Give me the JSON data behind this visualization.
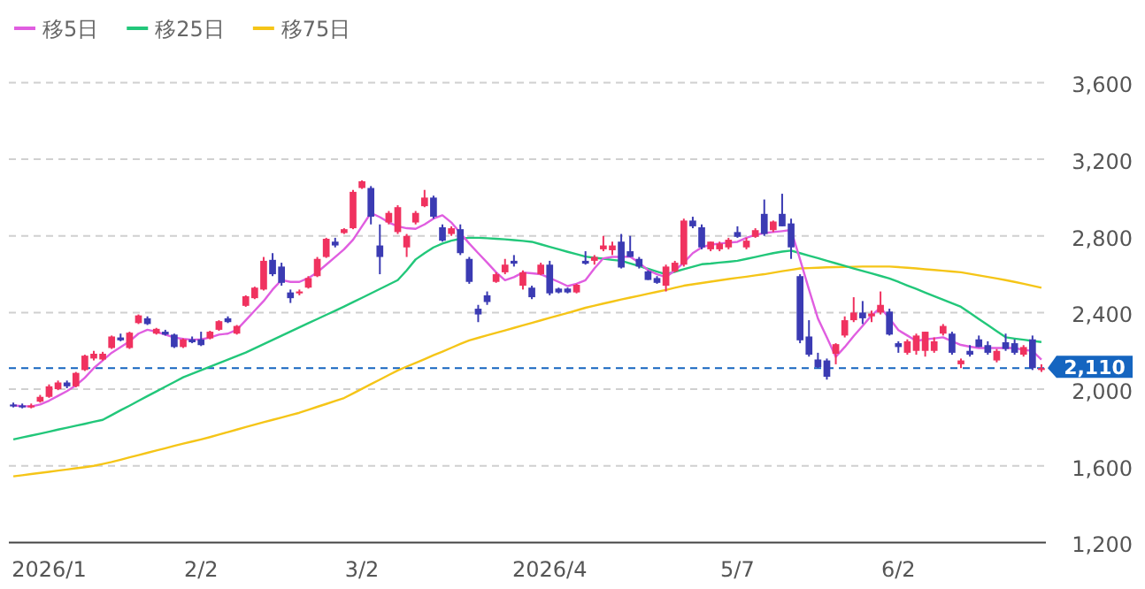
{
  "chart_data": {
    "type": "candlestick",
    "categories": [
      null,
      null,
      null,
      null,
      "2026/1",
      null,
      null,
      null,
      null,
      null,
      null,
      null,
      null,
      null,
      null,
      null,
      null,
      null,
      null,
      null,
      null,
      "2/2",
      null,
      null,
      null,
      null,
      null,
      null,
      null,
      null,
      null,
      null,
      null,
      null,
      null,
      null,
      null,
      null,
      null,
      "3/2",
      null,
      null,
      null,
      null,
      null,
      null,
      null,
      null,
      null,
      null,
      null,
      null,
      null,
      null,
      null,
      null,
      null,
      null,
      null,
      null,
      "2026/4",
      null,
      null,
      null,
      null,
      null,
      null,
      null,
      null,
      null,
      null,
      null,
      null,
      null,
      null,
      null,
      null,
      null,
      null,
      null,
      null,
      "5/7",
      null,
      null,
      null,
      null,
      null,
      null,
      null,
      null,
      null,
      null,
      null,
      null,
      null,
      null,
      null,
      null,
      null,
      "6/2",
      null,
      null,
      null,
      null,
      null,
      null,
      null,
      null,
      null,
      null,
      null,
      null,
      null,
      null,
      null,
      null
    ],
    "ohlc": [
      [
        1920,
        1930,
        1905,
        1910
      ],
      [
        1915,
        1925,
        1900,
        1905
      ],
      [
        1905,
        1925,
        1900,
        1915
      ],
      [
        1935,
        1970,
        1930,
        1960
      ],
      [
        1960,
        2025,
        1955,
        2015
      ],
      [
        2000,
        2045,
        1995,
        2035
      ],
      [
        2035,
        2045,
        2005,
        2015
      ],
      [
        2015,
        2090,
        2010,
        2085
      ],
      [
        2100,
        2180,
        2095,
        2175
      ],
      [
        2160,
        2200,
        2150,
        2185
      ],
      [
        2155,
        2195,
        2150,
        2185
      ],
      [
        2215,
        2280,
        2210,
        2275
      ],
      [
        2270,
        2290,
        2250,
        2255
      ],
      [
        2215,
        2300,
        2210,
        2295
      ],
      [
        2345,
        2390,
        2340,
        2385
      ],
      [
        2370,
        2380,
        2335,
        2340
      ],
      [
        2290,
        2320,
        2285,
        2315
      ],
      [
        2300,
        2310,
        2280,
        2285
      ],
      [
        2285,
        2290,
        2215,
        2220
      ],
      [
        2220,
        2265,
        2215,
        2260
      ],
      [
        2260,
        2275,
        2240,
        2245
      ],
      [
        2260,
        2300,
        2225,
        2230
      ],
      [
        2265,
        2305,
        2260,
        2300
      ],
      [
        2310,
        2360,
        2305,
        2355
      ],
      [
        2370,
        2380,
        2345,
        2350
      ],
      [
        2290,
        2335,
        2285,
        2330
      ],
      [
        2435,
        2490,
        2430,
        2485
      ],
      [
        2475,
        2535,
        2470,
        2530
      ],
      [
        2520,
        2690,
        2515,
        2670
      ],
      [
        2675,
        2710,
        2590,
        2600
      ],
      [
        2640,
        2660,
        2540,
        2555
      ],
      [
        2505,
        2520,
        2450,
        2475
      ],
      [
        2500,
        2520,
        2490,
        2510
      ],
      [
        2530,
        2590,
        2525,
        2580
      ],
      [
        2590,
        2690,
        2585,
        2680
      ],
      [
        2690,
        2790,
        2685,
        2785
      ],
      [
        2770,
        2790,
        2740,
        2750
      ],
      [
        2815,
        2840,
        2810,
        2835
      ],
      [
        2840,
        3040,
        2835,
        3030
      ],
      [
        3050,
        3090,
        3045,
        3085
      ],
      [
        3050,
        3060,
        2860,
        2900
      ],
      [
        2750,
        2860,
        2600,
        2690
      ],
      [
        2870,
        2930,
        2860,
        2920
      ],
      [
        2820,
        2960,
        2810,
        2950
      ],
      [
        2740,
        2810,
        2690,
        2800
      ],
      [
        2870,
        2930,
        2860,
        2920
      ],
      [
        2955,
        3040,
        2950,
        3000
      ],
      [
        3000,
        3010,
        2890,
        2900
      ],
      [
        2845,
        2860,
        2770,
        2775
      ],
      [
        2810,
        2850,
        2800,
        2840
      ],
      [
        2835,
        2860,
        2700,
        2710
      ],
      [
        2680,
        2690,
        2550,
        2560
      ],
      [
        2420,
        2440,
        2350,
        2390
      ],
      [
        2490,
        2510,
        2440,
        2455
      ],
      [
        2560,
        2610,
        2555,
        2600
      ],
      [
        2610,
        2680,
        2600,
        2650
      ],
      [
        2670,
        2700,
        2640,
        2655
      ],
      [
        2540,
        2620,
        2520,
        2610
      ],
      [
        2530,
        2540,
        2470,
        2480
      ],
      [
        2600,
        2660,
        2595,
        2650
      ],
      [
        2650,
        2670,
        2490,
        2500
      ],
      [
        2525,
        2530,
        2500,
        2505
      ],
      [
        2525,
        2530,
        2500,
        2505
      ],
      [
        2505,
        2550,
        2500,
        2545
      ],
      [
        2670,
        2720,
        2650,
        2655
      ],
      [
        2670,
        2700,
        2650,
        2690
      ],
      [
        2730,
        2800,
        2720,
        2750
      ],
      [
        2725,
        2770,
        2700,
        2750
      ],
      [
        2770,
        2810,
        2630,
        2635
      ],
      [
        2720,
        2800,
        2690,
        2690
      ],
      [
        2680,
        2690,
        2630,
        2640
      ],
      [
        2615,
        2620,
        2570,
        2570
      ],
      [
        2580,
        2590,
        2550,
        2555
      ],
      [
        2540,
        2650,
        2510,
        2640
      ],
      [
        2615,
        2670,
        2610,
        2660
      ],
      [
        2650,
        2890,
        2640,
        2880
      ],
      [
        2880,
        2900,
        2840,
        2850
      ],
      [
        2845,
        2860,
        2730,
        2740
      ],
      [
        2730,
        2770,
        2720,
        2770
      ],
      [
        2730,
        2770,
        2720,
        2760
      ],
      [
        2740,
        2790,
        2730,
        2780
      ],
      [
        2820,
        2850,
        2790,
        2795
      ],
      [
        2740,
        2790,
        2730,
        2775
      ],
      [
        2795,
        2840,
        2790,
        2830
      ],
      [
        2915,
        2990,
        2800,
        2810
      ],
      [
        2830,
        2880,
        2820,
        2875
      ],
      [
        2915,
        3020,
        2850,
        2850
      ],
      [
        2865,
        2890,
        2680,
        2740
      ],
      [
        2590,
        2600,
        2240,
        2255
      ],
      [
        2275,
        2360,
        2170,
        2180
      ],
      [
        2155,
        2190,
        2110,
        2115
      ],
      [
        2150,
        2160,
        2050,
        2065
      ],
      [
        2185,
        2240,
        2130,
        2235
      ],
      [
        2280,
        2380,
        2270,
        2360
      ],
      [
        2360,
        2480,
        2350,
        2400
      ],
      [
        2400,
        2460,
        2340,
        2370
      ],
      [
        2380,
        2410,
        2350,
        2395
      ],
      [
        2400,
        2510,
        2390,
        2440
      ],
      [
        2405,
        2420,
        2280,
        2285
      ],
      [
        2240,
        2250,
        2190,
        2220
      ],
      [
        2190,
        2260,
        2180,
        2250
      ],
      [
        2200,
        2290,
        2180,
        2280
      ],
      [
        2200,
        2300,
        2170,
        2300
      ],
      [
        2200,
        2270,
        2190,
        2250
      ],
      [
        2290,
        2340,
        2280,
        2330
      ],
      [
        2290,
        2300,
        2180,
        2190
      ],
      [
        2130,
        2160,
        2110,
        2150
      ],
      [
        2200,
        2230,
        2170,
        2180
      ],
      [
        2260,
        2280,
        2220,
        2220
      ],
      [
        2230,
        2250,
        2180,
        2190
      ],
      [
        2150,
        2210,
        2140,
        2200
      ],
      [
        2245,
        2290,
        2200,
        2210
      ],
      [
        2240,
        2260,
        2180,
        2190
      ],
      [
        2180,
        2230,
        2170,
        2220
      ],
      [
        2260,
        2280,
        2100,
        2110
      ],
      [
        2100,
        2130,
        2090,
        2110
      ]
    ],
    "series": [
      {
        "name": "移5日",
        "type": "line",
        "color": "#e05ee0",
        "values": [
          1915,
          1912,
          1910,
          1920,
          1940,
          1965,
          1990,
          2020,
          2060,
          2110,
          2150,
          2190,
          2220,
          2250,
          2290,
          2310,
          2300,
          2285,
          2270,
          2262,
          2258,
          2260,
          2270,
          2285,
          2290,
          2310,
          2360,
          2410,
          2460,
          2520,
          2570,
          2560,
          2560,
          2580,
          2610,
          2650,
          2690,
          2730,
          2780,
          2850,
          2920,
          2898,
          2870,
          2850,
          2840,
          2837,
          2860,
          2890,
          2908,
          2870,
          2815,
          2760,
          2710,
          2661,
          2610,
          2569,
          2585,
          2609,
          2605,
          2600,
          2580,
          2560,
          2538,
          2550,
          2569,
          2630,
          2683,
          2690,
          2690,
          2692,
          2660,
          2621,
          2600,
          2585,
          2620,
          2661,
          2710,
          2740,
          2754,
          2760,
          2765,
          2769,
          2790,
          2805,
          2815,
          2820,
          2825,
          2831,
          2677,
          2520,
          2369,
          2270,
          2169,
          2220,
          2277,
          2330,
          2385,
          2425,
          2370,
          2308,
          2280,
          2252,
          2260,
          2265,
          2271,
          2250,
          2231,
          2222,
          2215,
          2215,
          2215,
          2215,
          2215,
          2205,
          2200,
          2154
        ]
      },
      {
        "name": "移25日",
        "type": "line",
        "color": "#22c77a",
        "values": [
          1738,
          1748,
          1758,
          1768,
          1778,
          1789,
          1799,
          1809,
          1819,
          1830,
          1840,
          1865,
          1890,
          1914,
          1939,
          1964,
          1988,
          2013,
          2037,
          2062,
          2080,
          2099,
          2117,
          2136,
          2154,
          2173,
          2191,
          2213,
          2235,
          2257,
          2279,
          2301,
          2323,
          2345,
          2366,
          2388,
          2409,
          2431,
          2454,
          2477,
          2500,
          2523,
          2546,
          2569,
          2620,
          2677,
          2710,
          2740,
          2760,
          2775,
          2785,
          2790,
          2790,
          2788,
          2785,
          2782,
          2778,
          2774,
          2769,
          2756,
          2743,
          2730,
          2717,
          2705,
          2692,
          2686,
          2681,
          2675,
          2670,
          2656,
          2642,
          2628,
          2614,
          2600,
          2613,
          2626,
          2639,
          2652,
          2656,
          2661,
          2665,
          2670,
          2680,
          2690,
          2700,
          2710,
          2718,
          2723,
          2710,
          2697,
          2684,
          2670,
          2657,
          2644,
          2630,
          2617,
          2604,
          2591,
          2578,
          2560,
          2541,
          2523,
          2504,
          2486,
          2467,
          2449,
          2430,
          2398,
          2366,
          2335,
          2303,
          2271,
          2264,
          2258,
          2252,
          2246
        ]
      },
      {
        "name": "移75日",
        "type": "line",
        "color": "#f5c518",
        "values": [
          1545,
          1551,
          1557,
          1563,
          1569,
          1575,
          1581,
          1587,
          1593,
          1600,
          1610,
          1620,
          1632,
          1644,
          1656,
          1668,
          1680,
          1692,
          1704,
          1716,
          1727,
          1738,
          1750,
          1763,
          1776,
          1789,
          1802,
          1815,
          1828,
          1840,
          1852,
          1865,
          1877,
          1892,
          1908,
          1923,
          1939,
          1954,
          1978,
          2002,
          2026,
          2050,
          2074,
          2098,
          2118,
          2137,
          2157,
          2177,
          2196,
          2216,
          2236,
          2255,
          2268,
          2281,
          2294,
          2307,
          2320,
          2333,
          2346,
          2359,
          2372,
          2385,
          2398,
          2411,
          2425,
          2436,
          2447,
          2457,
          2468,
          2478,
          2488,
          2498,
          2508,
          2518,
          2529,
          2540,
          2547,
          2554,
          2561,
          2568,
          2575,
          2581,
          2587,
          2594,
          2600,
          2608,
          2616,
          2623,
          2630,
          2632,
          2634,
          2636,
          2637,
          2638,
          2639,
          2640,
          2640,
          2640,
          2640,
          2637,
          2634,
          2630,
          2626,
          2622,
          2618,
          2614,
          2610,
          2602,
          2594,
          2586,
          2578,
          2569,
          2560,
          2550,
          2540,
          2529
        ]
      }
    ],
    "ylim": [
      1200,
      3600
    ],
    "yticks": [
      {
        "value": 1200,
        "label": "1,200"
      },
      {
        "value": 1600,
        "label": "1,600"
      },
      {
        "value": 2000,
        "label": "2,000"
      },
      {
        "value": 2400,
        "label": "2,400"
      },
      {
        "value": 2800,
        "label": "2,800"
      },
      {
        "value": 3200,
        "label": "3,200"
      },
      {
        "value": 3600,
        "label": "3,600"
      }
    ],
    "grid": "y",
    "legend": "top left",
    "ref_lines": [
      {
        "axis": "y",
        "value": 2110,
        "label": "2,110",
        "color": "#1565c0",
        "line_style": "dashed"
      }
    ]
  }
}
